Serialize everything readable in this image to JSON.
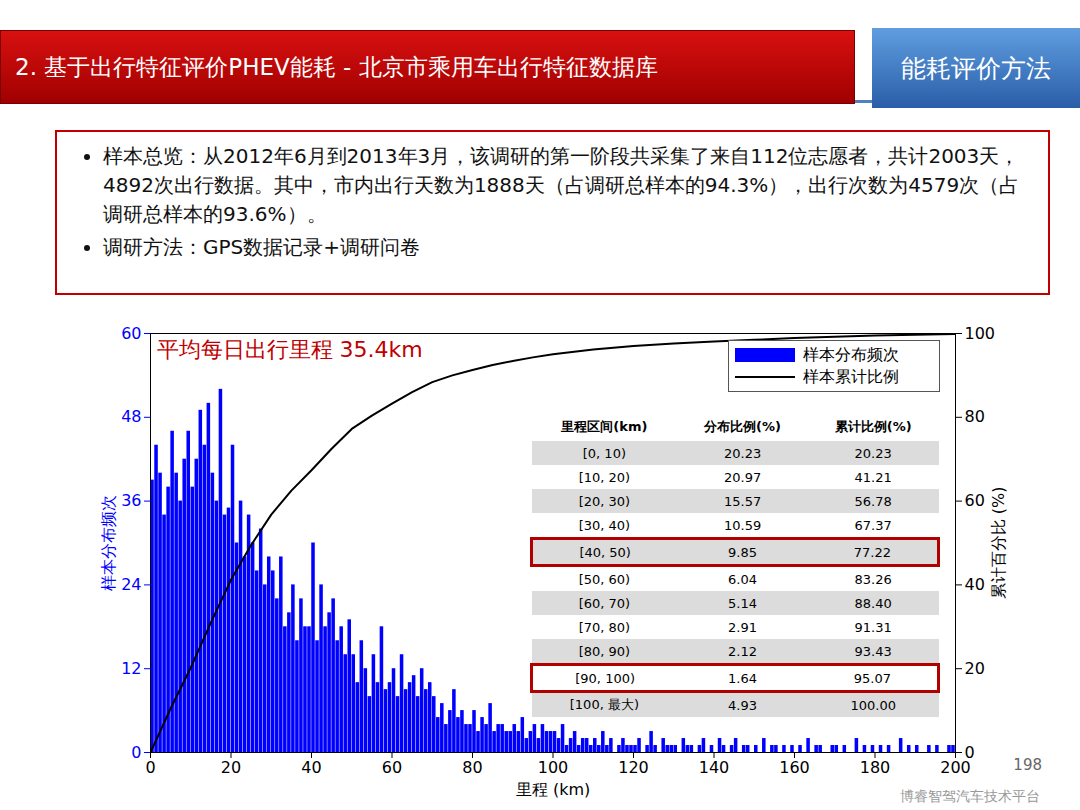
{
  "slide": {
    "title": "2. 基于出行特征评价PHEV能耗 - 北京市乘用车出行特征数据库",
    "tag": "能耗评价方法",
    "bullets": [
      "样本总览：从2012年6月到2013年3月，该调研的第一阶段共采集了来自112位志愿者，共计2003天，4892次出行数据。其中，市内出行天数为1888天（占调研总样本的94.3%），出行次数为4579次（占调研总样本的93.6%）。",
      "调研方法：GPS数据记录+调研问卷"
    ],
    "page_number": "198",
    "watermark": "博睿智驾汽车技术平台"
  },
  "chart_data": {
    "type": "histogram",
    "annotation": "平均每日出行里程 35.4km",
    "xlabel": "里程 (km)",
    "ylabel": "样本分布频次",
    "y2label": "累计百分比 (%)",
    "xlim": [
      0,
      200
    ],
    "xticks": [
      0,
      20,
      40,
      60,
      80,
      100,
      120,
      140,
      160,
      180,
      200
    ],
    "ylim": [
      0,
      60
    ],
    "yticks": [
      0,
      12,
      24,
      36,
      48,
      60
    ],
    "y2lim": [
      0,
      100
    ],
    "y2ticks": [
      0,
      20,
      40,
      60,
      80,
      100
    ],
    "legend": "upper right",
    "series": [
      {
        "name": "样本分布频次",
        "type": "bar",
        "color": "#0000ff",
        "bins": [
          0,
          1,
          2,
          3,
          4,
          5,
          6,
          7,
          8,
          9,
          10,
          11,
          12,
          13,
          14,
          15,
          16,
          17,
          18,
          19,
          20,
          21,
          22,
          23,
          24,
          25,
          26,
          27,
          28,
          29,
          30,
          31,
          32,
          33,
          34,
          35,
          36,
          37,
          38,
          39,
          40,
          41,
          42,
          43,
          44,
          45,
          46,
          47,
          48,
          49,
          50,
          51,
          52,
          53,
          54,
          55,
          56,
          57,
          58,
          59,
          60,
          61,
          62,
          63,
          64,
          65,
          66,
          67,
          68,
          69,
          70,
          71,
          72,
          73,
          74,
          75,
          76,
          77,
          78,
          79,
          80,
          81,
          82,
          83,
          84,
          85,
          86,
          87,
          88,
          89,
          90,
          91,
          92,
          93,
          94,
          95,
          96,
          97,
          98,
          99,
          100,
          101,
          102,
          103,
          104,
          105,
          106,
          107,
          108,
          109,
          110,
          111,
          112,
          113,
          114,
          115,
          116,
          117,
          118,
          119,
          120,
          121,
          122,
          123,
          124,
          125,
          126,
          127,
          128,
          129,
          130,
          131,
          132,
          133,
          134,
          135,
          136,
          137,
          138,
          139,
          140,
          141,
          142,
          143,
          144,
          145,
          146,
          147,
          148,
          149,
          150,
          151,
          152,
          153,
          154,
          155,
          156,
          157,
          158,
          159,
          160,
          161,
          162,
          163,
          164,
          165,
          166,
          167,
          168,
          169,
          170,
          171,
          172,
          173,
          174,
          175,
          176,
          177,
          178,
          179,
          180,
          181,
          182,
          183,
          184,
          185,
          186,
          187,
          188,
          189,
          190,
          191,
          192,
          193,
          194,
          195,
          196,
          197,
          198,
          199,
          200
        ],
        "values": [
          39,
          44,
          40,
          34,
          38,
          46,
          40,
          36,
          42,
          46,
          38,
          42,
          49,
          44,
          50,
          40,
          36,
          52,
          34,
          35,
          44,
          30,
          36,
          28,
          34,
          30,
          26,
          32,
          24,
          28,
          26,
          22,
          28,
          18,
          20,
          24,
          16,
          22,
          18,
          18,
          30,
          16,
          24,
          18,
          20,
          22,
          16,
          18,
          14,
          19,
          14,
          10,
          16,
          12,
          8,
          14,
          10,
          18,
          9,
          10,
          12,
          8,
          14,
          9,
          10,
          11,
          8,
          12,
          9,
          10,
          8,
          5,
          7,
          4,
          6,
          9,
          5,
          6,
          4,
          4,
          6,
          3,
          5,
          4,
          7,
          3,
          4,
          4,
          3,
          3,
          4,
          3,
          5,
          2,
          3,
          4,
          2,
          4,
          3,
          3,
          3,
          2,
          4,
          1,
          2,
          3,
          1,
          2,
          2,
          1,
          2,
          1,
          3,
          1,
          2,
          0,
          1,
          2,
          1,
          1,
          1,
          2,
          0,
          1,
          3,
          1,
          0,
          2,
          1,
          1,
          1,
          0,
          2,
          1,
          1,
          0,
          1,
          2,
          0,
          1,
          0,
          2,
          1,
          0,
          1,
          2,
          0,
          1,
          1,
          0,
          1,
          0,
          2,
          0,
          1,
          1,
          0,
          1,
          0,
          1,
          0,
          1,
          0,
          2,
          0,
          1,
          1,
          0,
          0,
          1,
          1,
          0,
          1,
          0,
          0,
          2,
          0,
          1,
          0,
          1,
          0,
          1,
          0,
          1,
          0,
          0,
          2,
          0,
          1,
          0,
          1,
          0,
          0,
          1,
          0,
          1,
          0,
          0,
          1,
          1
        ]
      },
      {
        "name": "样本累计比例",
        "type": "line",
        "axis": "y2",
        "color": "#000000",
        "x": [
          0,
          5,
          10,
          15,
          20,
          25,
          30,
          35,
          40,
          45,
          50,
          55,
          60,
          65,
          70,
          75,
          80,
          85,
          90,
          95,
          100,
          110,
          120,
          130,
          140,
          150,
          160,
          170,
          180,
          190,
          200
        ],
        "values": [
          0,
          10.5,
          20.23,
          31,
          41.21,
          49.5,
          56.78,
          62.5,
          67.37,
          72.5,
          77.22,
          80.4,
          83.26,
          86,
          88.4,
          90,
          91.31,
          92.5,
          93.43,
          94.3,
          95.07,
          96.2,
          97,
          97.6,
          98.1,
          98.5,
          98.9,
          99.2,
          99.5,
          99.7,
          99.9
        ]
      }
    ],
    "table": {
      "columns": [
        "里程区间(km)",
        "分布比例(%)",
        "累计比例(%)"
      ],
      "rows": [
        [
          "[0, 10)",
          "20.23",
          "20.23"
        ],
        [
          "[10, 20)",
          "20.97",
          "41.21"
        ],
        [
          "[20, 30)",
          "15.57",
          "56.78"
        ],
        [
          "[30, 40)",
          "10.59",
          "67.37"
        ],
        [
          "[40, 50)",
          "9.85",
          "77.22"
        ],
        [
          "[50, 60)",
          "6.04",
          "83.26"
        ],
        [
          "[60, 70)",
          "5.14",
          "88.40"
        ],
        [
          "[70, 80)",
          "2.91",
          "91.31"
        ],
        [
          "[80, 90)",
          "2.12",
          "93.43"
        ],
        [
          "[90, 100)",
          "1.64",
          "95.07"
        ],
        [
          "[100, 最大)",
          "4.93",
          "100.00"
        ]
      ],
      "highlighted": [
        "[40, 50)",
        "[90, 100)"
      ]
    }
  }
}
